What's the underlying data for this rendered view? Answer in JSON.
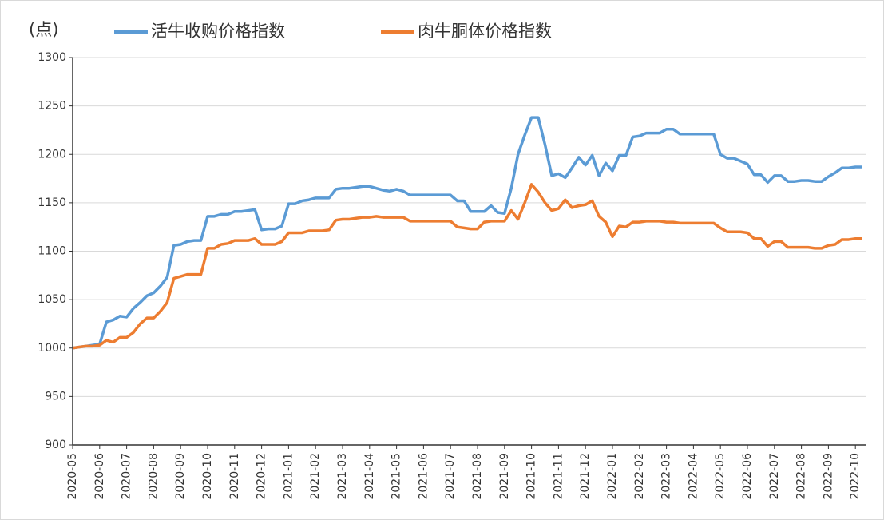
{
  "chart_data": {
    "type": "line",
    "y_label": "(点)",
    "categories": [
      "2020-05",
      null,
      null,
      null,
      "2020-06",
      null,
      null,
      null,
      "2020-07",
      null,
      null,
      null,
      "2020-08",
      null,
      null,
      null,
      "2020-09",
      null,
      null,
      null,
      "2020-10",
      null,
      null,
      null,
      "2020-11",
      null,
      null,
      null,
      "2020-12",
      null,
      null,
      null,
      "2021-01",
      null,
      null,
      null,
      "2021-02",
      null,
      null,
      null,
      "2021-03",
      null,
      null,
      null,
      "2021-04",
      null,
      null,
      null,
      "2021-05",
      null,
      null,
      null,
      "2021-06",
      null,
      null,
      null,
      "2021-07",
      null,
      null,
      null,
      "2021-08",
      null,
      null,
      null,
      "2021-09",
      null,
      null,
      null,
      "2021-10",
      null,
      null,
      null,
      "2021-11",
      null,
      null,
      null,
      "2021-12",
      null,
      null,
      null,
      "2022-01",
      null,
      null,
      null,
      "2022-02",
      null,
      null,
      null,
      "2022-03",
      null,
      null,
      null,
      "2022-04",
      null,
      null,
      null,
      "2022-05",
      null,
      null,
      null,
      "2022-06",
      null,
      null,
      null,
      "2022-07",
      null,
      null,
      null,
      "2022-08",
      null,
      null,
      null,
      "2022-09",
      null,
      null,
      null,
      "2022-10",
      null
    ],
    "series": [
      {
        "name": "活牛收购价格指数",
        "color": "#5b9bd5",
        "values": [
          1000,
          1001,
          1002,
          1003,
          1004,
          1027,
          1029,
          1033,
          1032,
          1041,
          1047,
          1054,
          1057,
          1064,
          1073,
          1106,
          1107,
          1110,
          1111,
          1111,
          1136,
          1136,
          1138,
          1138,
          1141,
          1141,
          1142,
          1143,
          1122,
          1123,
          1123,
          1126,
          1149,
          1149,
          1152,
          1153,
          1155,
          1155,
          1155,
          1164,
          1165,
          1165,
          1166,
          1167,
          1167,
          1165,
          1163,
          1162,
          1164,
          1162,
          1158,
          1158,
          1158,
          1158,
          1158,
          1158,
          1158,
          1152,
          1152,
          1141,
          1141,
          1141,
          1147,
          1140,
          1139,
          1165,
          1200,
          1220,
          1238,
          1238,
          1210,
          1178,
          1180,
          1176,
          1186,
          1197,
          1189,
          1199,
          1178,
          1191,
          1183,
          1199,
          1199,
          1218,
          1219,
          1222,
          1222,
          1222,
          1226,
          1226,
          1221,
          1221,
          1221,
          1221,
          1221,
          1221,
          1200,
          1196,
          1196,
          1193,
          1190,
          1179,
          1179,
          1171,
          1178,
          1178,
          1172,
          1172,
          1173,
          1173,
          1172,
          1172,
          1177,
          1181,
          1186,
          1186,
          1187,
          1187
        ]
      },
      {
        "name": "肉牛胴体价格指数",
        "color": "#ed7d31",
        "values": [
          1000,
          1001,
          1002,
          1002,
          1003,
          1008,
          1006,
          1011,
          1011,
          1016,
          1025,
          1031,
          1031,
          1038,
          1047,
          1072,
          1074,
          1076,
          1076,
          1076,
          1103,
          1103,
          1107,
          1108,
          1111,
          1111,
          1111,
          1113,
          1107,
          1107,
          1107,
          1110,
          1119,
          1119,
          1119,
          1121,
          1121,
          1121,
          1122,
          1132,
          1133,
          1133,
          1134,
          1135,
          1135,
          1136,
          1135,
          1135,
          1135,
          1135,
          1131,
          1131,
          1131,
          1131,
          1131,
          1131,
          1131,
          1125,
          1124,
          1123,
          1123,
          1130,
          1131,
          1131,
          1131,
          1142,
          1133,
          1150,
          1169,
          1161,
          1150,
          1142,
          1144,
          1153,
          1145,
          1147,
          1148,
          1152,
          1136,
          1130,
          1115,
          1126,
          1125,
          1130,
          1130,
          1131,
          1131,
          1131,
          1130,
          1130,
          1129,
          1129,
          1129,
          1129,
          1129,
          1129,
          1124,
          1120,
          1120,
          1120,
          1119,
          1113,
          1113,
          1105,
          1110,
          1110,
          1104,
          1104,
          1104,
          1104,
          1103,
          1103,
          1106,
          1107,
          1112,
          1112,
          1113,
          1113
        ]
      }
    ],
    "ylim": [
      900,
      1300
    ],
    "yticks": [
      900,
      950,
      1000,
      1050,
      1100,
      1150,
      1200,
      1250,
      1300
    ],
    "grid": true
  }
}
